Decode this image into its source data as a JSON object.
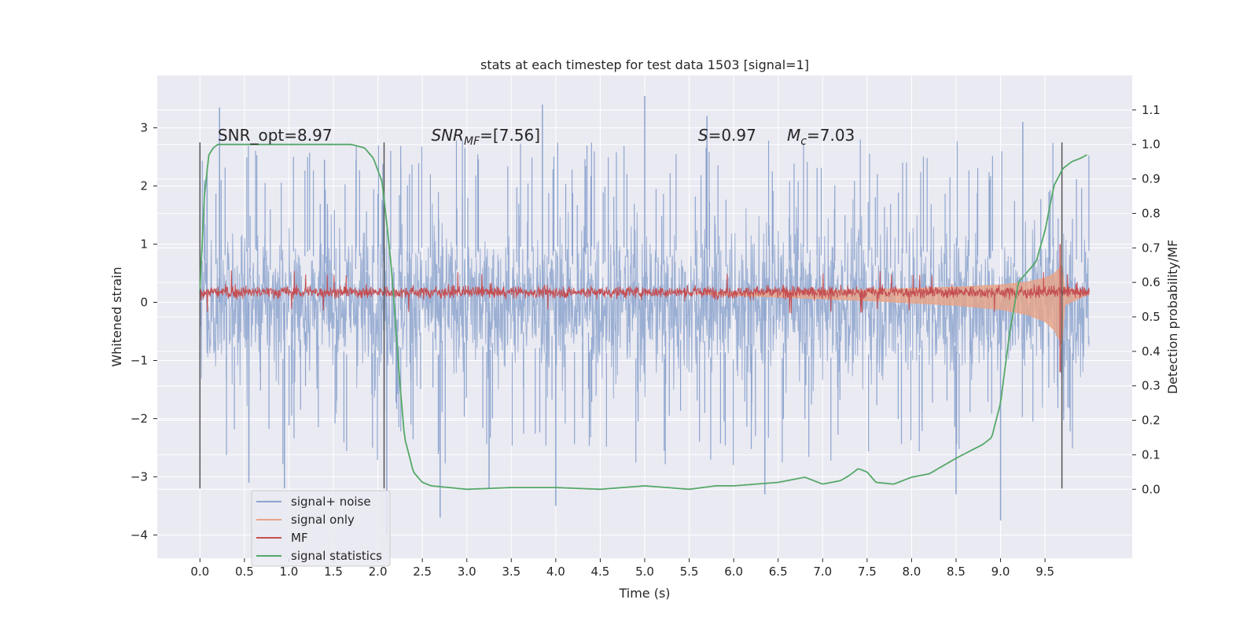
{
  "chart_data": {
    "type": "line",
    "title": "stats at each timestep for test data 1503 [signal=1]",
    "xlabel": "Time (s)",
    "ylabel": "Whitened strain",
    "y2label": "Detection probability/MF",
    "xlim": [
      -0.48,
      10.48
    ],
    "ylim": [
      -4.4,
      3.9
    ],
    "y2lim": [
      -0.2,
      1.2
    ],
    "grid": true,
    "legend_location": "lower-left",
    "x_ticks": [
      0.0,
      0.5,
      1.0,
      1.5,
      2.0,
      2.5,
      3.0,
      3.5,
      4.0,
      4.5,
      5.0,
      5.5,
      6.0,
      6.5,
      7.0,
      7.5,
      8.0,
      8.5,
      9.0,
      9.5
    ],
    "x_tick_labels": [
      "0.0",
      "0.5",
      "1.0",
      "1.5",
      "2.0",
      "2.5",
      "3.0",
      "3.5",
      "4.0",
      "4.5",
      "5.0",
      "5.5",
      "6.0",
      "6.5",
      "7.0",
      "7.5",
      "8.0",
      "8.5",
      "9.0",
      "9.5"
    ],
    "y_ticks": [
      -4,
      -3,
      -2,
      -1,
      0,
      1,
      2,
      3
    ],
    "y_tick_labels": [
      "−4",
      "−3",
      "−2",
      "−1",
      "0",
      "1",
      "2",
      "3"
    ],
    "y2_ticks": [
      0.0,
      0.1,
      0.2,
      0.3,
      0.4,
      0.5,
      0.6,
      0.7,
      0.8,
      0.9,
      1.0,
      1.1
    ],
    "y2_tick_labels": [
      "0.0",
      "0.1",
      "0.2",
      "0.3",
      "0.4",
      "0.5",
      "0.6",
      "0.7",
      "0.8",
      "0.9",
      "1.0",
      "1.1"
    ],
    "annotations": [
      {
        "id": "snr-opt",
        "text": "SNR_opt=8.97",
        "x": 0.2,
        "y": 2.78
      },
      {
        "id": "snr-mf",
        "base": "SNR",
        "sub": "MF",
        "rest": "=[7.56]",
        "x": 2.6,
        "y": 2.78
      },
      {
        "id": "s-stat",
        "base": "S",
        "rest": "=0.97",
        "x": 5.6,
        "y": 2.78
      },
      {
        "id": "mchirp",
        "base": "M",
        "sub": "c",
        "rest": "=7.03",
        "x": 6.6,
        "y": 2.78
      }
    ],
    "vertical_markers": [
      {
        "x": 0.0,
        "y": [
          -3.2,
          2.75
        ]
      },
      {
        "x": 2.07,
        "y": [
          -3.2,
          2.75
        ]
      },
      {
        "x": 9.69,
        "y": [
          -3.2,
          2.75
        ]
      }
    ],
    "series": [
      {
        "name": "signal+ noise",
        "color": "#8da4ce",
        "axis": "left",
        "kind": "noise-band",
        "x_range": [
          0.0,
          10.0
        ],
        "typical_range": [
          -1.3,
          1.3
        ],
        "extremes": [
          {
            "x": 0.08,
            "y": 2.3
          },
          {
            "x": 0.22,
            "y": 3.35
          },
          {
            "x": 0.55,
            "y": -3.1
          },
          {
            "x": 0.95,
            "y": -3.2
          },
          {
            "x": 1.4,
            "y": 2.45
          },
          {
            "x": 2.1,
            "y": -4.0
          },
          {
            "x": 2.7,
            "y": -3.7
          },
          {
            "x": 3.25,
            "y": -3.2
          },
          {
            "x": 3.85,
            "y": 3.4
          },
          {
            "x": 4.0,
            "y": -3.5
          },
          {
            "x": 5.0,
            "y": 3.55
          },
          {
            "x": 5.7,
            "y": 3.2
          },
          {
            "x": 6.35,
            "y": -3.3
          },
          {
            "x": 8.5,
            "y": -3.3
          },
          {
            "x": 9.0,
            "y": -3.75
          },
          {
            "x": 9.25,
            "y": 3.1
          }
        ]
      },
      {
        "name": "signal only",
        "color": "#e8a487",
        "axis": "left",
        "kind": "chirp-envelope",
        "x": [
          5.5,
          6.5,
          7.5,
          8.5,
          9.0,
          9.3,
          9.5,
          9.6,
          9.66,
          9.69,
          9.72,
          10.0
        ],
        "amplitude": [
          0.0,
          0.06,
          0.12,
          0.2,
          0.27,
          0.36,
          0.48,
          0.62,
          0.78,
          0.9,
          0.2,
          0.0
        ]
      },
      {
        "name": "MF",
        "color": "#c44e52",
        "axis": "left",
        "kind": "noise-band",
        "x_range": [
          0.0,
          10.0
        ],
        "typical_range": [
          0.05,
          0.3
        ],
        "extremes": [
          {
            "x": 9.67,
            "y": 1.0
          },
          {
            "x": 9.67,
            "y": -1.2
          }
        ]
      },
      {
        "name": "signal statistics",
        "color": "#55a868",
        "axis": "right",
        "x": [
          0.0,
          0.05,
          0.1,
          0.15,
          0.2,
          0.3,
          0.5,
          1.0,
          1.5,
          1.7,
          1.85,
          1.95,
          2.05,
          2.15,
          2.25,
          2.3,
          2.4,
          2.5,
          2.6,
          2.8,
          3.0,
          3.5,
          4.0,
          4.5,
          5.0,
          5.5,
          5.8,
          6.0,
          6.5,
          6.7,
          6.8,
          7.0,
          7.2,
          7.3,
          7.4,
          7.5,
          7.6,
          7.8,
          8.0,
          8.2,
          8.5,
          8.8,
          8.9,
          9.0,
          9.1,
          9.2,
          9.3,
          9.4,
          9.5,
          9.6,
          9.7,
          9.8,
          9.9,
          9.97
        ],
        "values": [
          0.58,
          0.85,
          0.97,
          0.99,
          1.0,
          1.0,
          1.0,
          1.0,
          1.0,
          1.0,
          0.99,
          0.96,
          0.89,
          0.65,
          0.3,
          0.15,
          0.05,
          0.02,
          0.01,
          0.005,
          0.0,
          0.005,
          0.005,
          0.0,
          0.01,
          0.0,
          0.01,
          0.01,
          0.02,
          0.03,
          0.035,
          0.015,
          0.025,
          0.04,
          0.06,
          0.05,
          0.02,
          0.015,
          0.035,
          0.045,
          0.09,
          0.13,
          0.15,
          0.25,
          0.45,
          0.6,
          0.63,
          0.66,
          0.75,
          0.88,
          0.93,
          0.95,
          0.96,
          0.97
        ]
      }
    ]
  }
}
